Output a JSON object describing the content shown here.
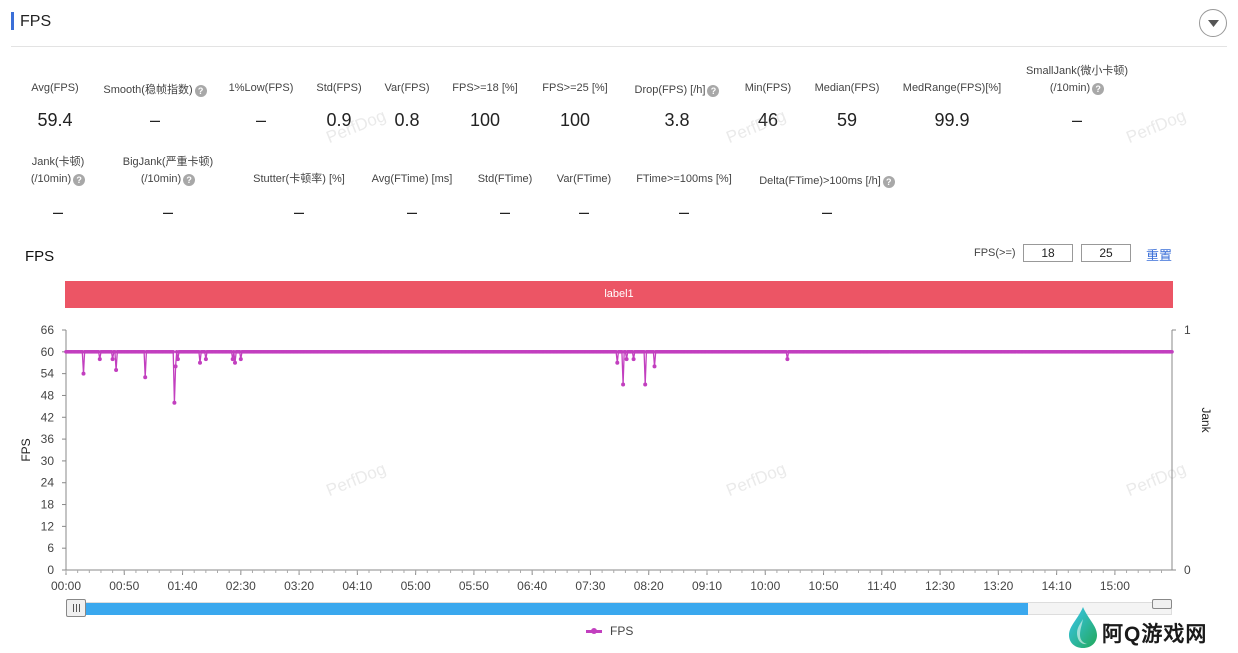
{
  "header": {
    "title": "FPS"
  },
  "metrics_row1": [
    {
      "label": "Avg(FPS)",
      "value": "59.4",
      "help": false
    },
    {
      "label": "Smooth(稳帧指数)",
      "value": "–",
      "help": true
    },
    {
      "label": "1%Low(FPS)",
      "value": "–",
      "help": false
    },
    {
      "label": "Std(FPS)",
      "value": "0.9",
      "help": false
    },
    {
      "label": "Var(FPS)",
      "value": "0.8",
      "help": false
    },
    {
      "label": "FPS>=18 [%]",
      "value": "100",
      "help": false
    },
    {
      "label": "FPS>=25 [%]",
      "value": "100",
      "help": false
    },
    {
      "label": "Drop(FPS) [/h]",
      "value": "3.8",
      "help": true
    },
    {
      "label": "Min(FPS)",
      "value": "46",
      "help": false
    },
    {
      "label": "Median(FPS)",
      "value": "59",
      "help": false
    },
    {
      "label": "MedRange(FPS)[%]",
      "value": "99.9",
      "help": false
    },
    {
      "label": "SmallJank(微小卡顿)",
      "label2": "(/10min)",
      "value": "–",
      "help": true
    }
  ],
  "metrics_row2": [
    {
      "label": "Jank(卡顿)",
      "label2": "(/10min)",
      "value": "–",
      "help": true
    },
    {
      "label": "BigJank(严重卡顿)",
      "label2": "(/10min)",
      "value": "–",
      "help": true
    },
    {
      "label": "Stutter(卡顿率) [%]",
      "value": "–",
      "help": false
    },
    {
      "label": "Avg(FTime) [ms]",
      "value": "–",
      "help": false
    },
    {
      "label": "Std(FTime)",
      "value": "–",
      "help": false
    },
    {
      "label": "Var(FTime)",
      "value": "–",
      "help": false
    },
    {
      "label": "FTime>=100ms [%]",
      "value": "–",
      "help": false
    },
    {
      "label": "Delta(FTime)>100ms [/h]",
      "value": "–",
      "help": true
    }
  ],
  "watermark": "PerfDog",
  "chart_section": {
    "title": "FPS",
    "threshold_label": "FPS(>=)",
    "threshold_1": "18",
    "threshold_2": "25",
    "reset_label": "重置",
    "segment_label": "label1",
    "legend_label": "FPS",
    "slider_fill_fraction": 0.87
  },
  "chart_data": {
    "type": "line",
    "ylabel": "FPS",
    "ylabel_right": "Jank",
    "ylim": [
      0,
      66
    ],
    "yticks": [
      0,
      6,
      12,
      18,
      24,
      30,
      36,
      42,
      48,
      54,
      60,
      66
    ],
    "y2lim": [
      0,
      1
    ],
    "y2ticks": [
      0,
      1
    ],
    "xticks": [
      "00:00",
      "00:50",
      "01:40",
      "02:30",
      "03:20",
      "04:10",
      "05:00",
      "05:50",
      "06:40",
      "07:30",
      "08:20",
      "09:10",
      "10:00",
      "10:50",
      "11:40",
      "12:30",
      "13:20",
      "14:10",
      "15:00"
    ],
    "x_range_seconds": [
      0,
      949
    ],
    "series": [
      {
        "name": "FPS",
        "color": "#c23fbf",
        "baseline": 60,
        "dips": [
          {
            "t": 15,
            "v": 54
          },
          {
            "t": 29,
            "v": 58
          },
          {
            "t": 40,
            "v": 58
          },
          {
            "t": 43,
            "v": 55
          },
          {
            "t": 68,
            "v": 53
          },
          {
            "t": 93,
            "v": 46
          },
          {
            "t": 94,
            "v": 56
          },
          {
            "t": 96,
            "v": 58
          },
          {
            "t": 115,
            "v": 57
          },
          {
            "t": 120,
            "v": 58
          },
          {
            "t": 143,
            "v": 58
          },
          {
            "t": 145,
            "v": 57
          },
          {
            "t": 150,
            "v": 58
          },
          {
            "t": 473,
            "v": 57
          },
          {
            "t": 478,
            "v": 51
          },
          {
            "t": 481,
            "v": 58
          },
          {
            "t": 487,
            "v": 58
          },
          {
            "t": 497,
            "v": 51
          },
          {
            "t": 505,
            "v": 56
          },
          {
            "t": 619,
            "v": 58
          }
        ]
      }
    ],
    "grid": false,
    "legend_position": "bottom"
  },
  "brand": {
    "text": "阿Q游戏网"
  }
}
